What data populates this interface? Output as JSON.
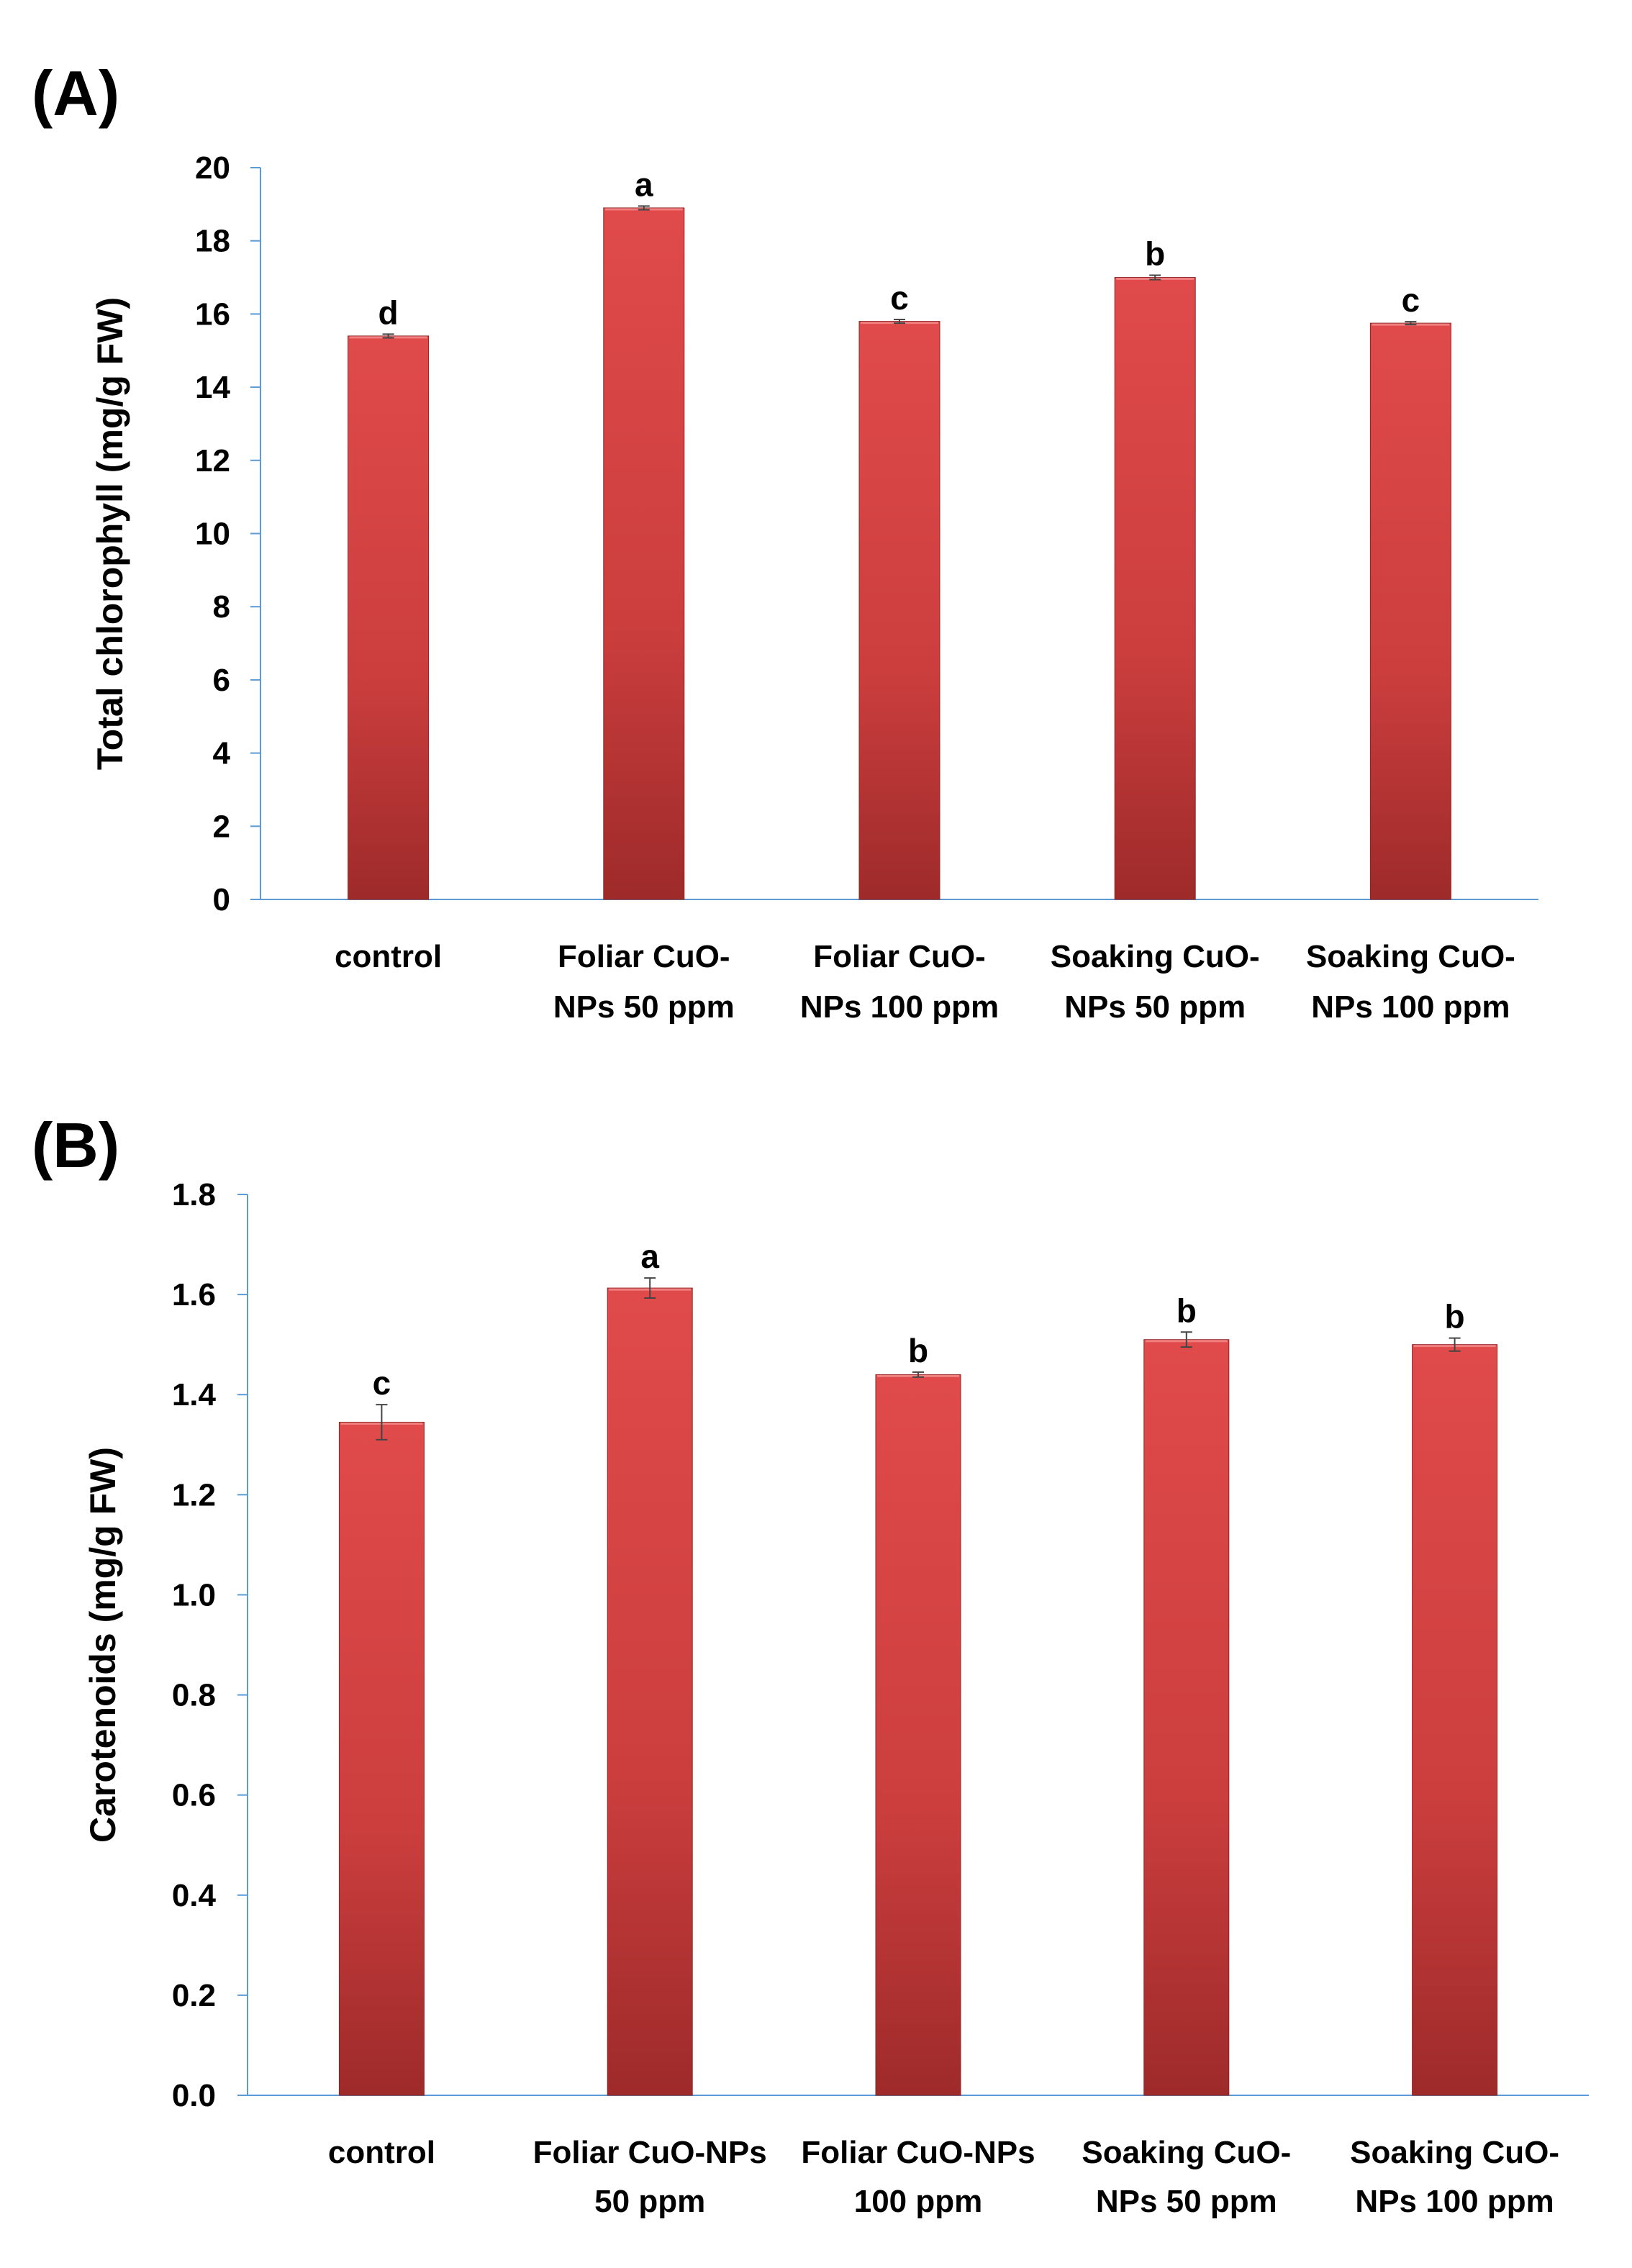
{
  "chart_data": [
    {
      "panel_label": "(A)",
      "type": "bar",
      "ylabel": "Total chlorophyll (mg/g FW)",
      "ylim": [
        0,
        20
      ],
      "yticks": [
        "0",
        "2",
        "4",
        "6",
        "8",
        "10",
        "12",
        "14",
        "16",
        "18",
        "20"
      ],
      "categories": [
        [
          "control"
        ],
        [
          "Foliar CuO-",
          "NPs 50 ppm"
        ],
        [
          "Foliar CuO-",
          "NPs 100 ppm"
        ],
        [
          "Soaking CuO-",
          "NPs 50 ppm"
        ],
        [
          "Soaking CuO-",
          "NPs 100 ppm"
        ]
      ],
      "values": [
        15.4,
        18.9,
        15.8,
        17.0,
        15.75
      ],
      "errors": [
        0.05,
        0.05,
        0.05,
        0.06,
        0.04
      ],
      "labels": [
        "d",
        "a",
        "c",
        "b",
        "c"
      ],
      "bar_color": "#c83c3c"
    },
    {
      "panel_label": "(B)",
      "type": "bar",
      "ylabel": "Carotenoids (mg/g FW)",
      "ylim": [
        0,
        1.8
      ],
      "yticks": [
        "0.0",
        "0.2",
        "0.4",
        "0.6",
        "0.8",
        "1.0",
        "1.2",
        "1.4",
        "1.6",
        "1.8"
      ],
      "categories": [
        [
          "control"
        ],
        [
          "Foliar CuO-NPs",
          "50 ppm"
        ],
        [
          "Foliar CuO-NPs",
          "100 ppm"
        ],
        [
          "Soaking CuO-",
          "NPs 50 ppm"
        ],
        [
          "Soaking CuO-",
          "NPs 100 ppm"
        ]
      ],
      "values": [
        1.345,
        1.613,
        1.44,
        1.51,
        1.5
      ],
      "errors": [
        0.035,
        0.02,
        0.005,
        0.015,
        0.013
      ],
      "labels": [
        "c",
        "a",
        "b",
        "b",
        "b"
      ],
      "bar_color": "#c83c3c"
    }
  ]
}
